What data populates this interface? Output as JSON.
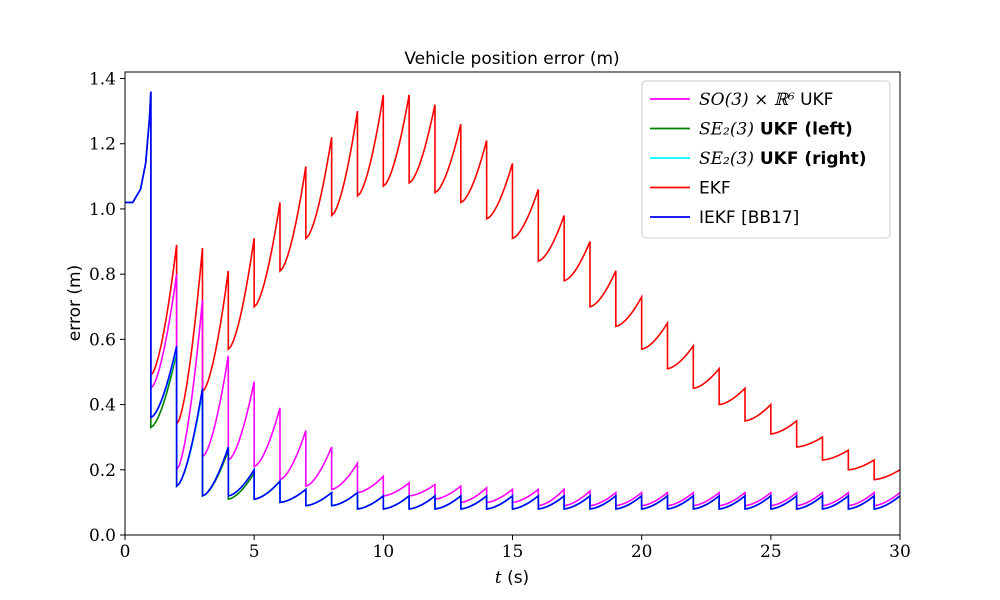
{
  "chart_data": {
    "type": "line",
    "title": "Vehicle position error (m)",
    "xlabel_var": "t",
    "xlabel_unit": "(s)",
    "ylabel": "error (m)",
    "xlim": [
      0,
      30
    ],
    "ylim": [
      0,
      1.42
    ],
    "xticks": [
      0,
      5,
      10,
      15,
      20,
      25,
      30
    ],
    "yticks": [
      0.0,
      0.2,
      0.4,
      0.6,
      0.8,
      1.0,
      1.2,
      1.4
    ],
    "grid": false,
    "legend_position": "top-right",
    "series": [
      {
        "name": "SO(3) × ℝ⁶ UKF",
        "color": "#ff00ff",
        "sawtooth": [
          [
            0.45,
            0.8
          ],
          [
            0.2,
            0.72
          ],
          [
            0.24,
            0.55
          ],
          [
            0.23,
            0.47
          ],
          [
            0.21,
            0.39
          ],
          [
            0.17,
            0.32
          ],
          [
            0.15,
            0.27
          ],
          [
            0.14,
            0.22
          ],
          [
            0.13,
            0.18
          ],
          [
            0.12,
            0.16
          ],
          [
            0.12,
            0.155
          ],
          [
            0.11,
            0.15
          ],
          [
            0.1,
            0.145
          ],
          [
            0.1,
            0.14
          ],
          [
            0.1,
            0.14
          ],
          [
            0.09,
            0.14
          ],
          [
            0.09,
            0.135
          ],
          [
            0.09,
            0.13
          ],
          [
            0.09,
            0.13
          ],
          [
            0.09,
            0.13
          ],
          [
            0.09,
            0.13
          ],
          [
            0.09,
            0.13
          ],
          [
            0.09,
            0.13
          ],
          [
            0.09,
            0.13
          ],
          [
            0.09,
            0.13
          ],
          [
            0.09,
            0.13
          ],
          [
            0.09,
            0.13
          ],
          [
            0.09,
            0.13
          ],
          [
            0.09,
            0.13
          ]
        ]
      },
      {
        "name": "SE₂(3) UKF (left)",
        "color": "#008000",
        "sawtooth": [
          [
            0.33,
            0.56
          ],
          [
            0.15,
            0.44
          ],
          [
            0.12,
            0.26
          ],
          [
            0.11,
            0.19
          ],
          [
            0.11,
            0.165
          ],
          [
            0.1,
            0.14
          ],
          [
            0.09,
            0.13
          ],
          [
            0.09,
            0.13
          ],
          [
            0.08,
            0.12
          ],
          [
            0.08,
            0.12
          ],
          [
            0.08,
            0.12
          ],
          [
            0.08,
            0.12
          ],
          [
            0.08,
            0.12
          ],
          [
            0.08,
            0.12
          ],
          [
            0.08,
            0.12
          ],
          [
            0.08,
            0.12
          ],
          [
            0.08,
            0.12
          ],
          [
            0.08,
            0.12
          ],
          [
            0.08,
            0.12
          ],
          [
            0.08,
            0.12
          ],
          [
            0.08,
            0.12
          ],
          [
            0.08,
            0.12
          ],
          [
            0.08,
            0.12
          ],
          [
            0.08,
            0.12
          ],
          [
            0.08,
            0.12
          ],
          [
            0.08,
            0.12
          ],
          [
            0.08,
            0.12
          ],
          [
            0.08,
            0.12
          ],
          [
            0.08,
            0.12
          ]
        ]
      },
      {
        "name": "SE₂(3) UKF (right)",
        "color": "#00ffff",
        "sawtooth": [
          [
            0.36,
            0.57
          ],
          [
            0.15,
            0.44
          ],
          [
            0.12,
            0.27
          ],
          [
            0.12,
            0.2
          ],
          [
            0.11,
            0.165
          ],
          [
            0.1,
            0.14
          ],
          [
            0.09,
            0.13
          ],
          [
            0.09,
            0.13
          ],
          [
            0.08,
            0.12
          ],
          [
            0.08,
            0.12
          ],
          [
            0.08,
            0.12
          ],
          [
            0.08,
            0.12
          ],
          [
            0.08,
            0.12
          ],
          [
            0.08,
            0.12
          ],
          [
            0.08,
            0.12
          ],
          [
            0.08,
            0.12
          ],
          [
            0.08,
            0.12
          ],
          [
            0.08,
            0.12
          ],
          [
            0.08,
            0.12
          ],
          [
            0.08,
            0.12
          ],
          [
            0.08,
            0.12
          ],
          [
            0.08,
            0.12
          ],
          [
            0.08,
            0.12
          ],
          [
            0.08,
            0.12
          ],
          [
            0.08,
            0.12
          ],
          [
            0.08,
            0.12
          ],
          [
            0.08,
            0.12
          ],
          [
            0.08,
            0.12
          ],
          [
            0.08,
            0.12
          ]
        ]
      },
      {
        "name": "EKF",
        "color": "#ff0000",
        "sawtooth": [
          [
            0.49,
            0.89
          ],
          [
            0.34,
            0.88
          ],
          [
            0.44,
            0.81
          ],
          [
            0.57,
            0.91
          ],
          [
            0.7,
            1.02
          ],
          [
            0.81,
            1.13
          ],
          [
            0.91,
            1.22
          ],
          [
            0.98,
            1.3
          ],
          [
            1.04,
            1.35
          ],
          [
            1.07,
            1.35
          ],
          [
            1.08,
            1.32
          ],
          [
            1.05,
            1.26
          ],
          [
            1.02,
            1.21
          ],
          [
            0.97,
            1.14
          ],
          [
            0.91,
            1.06
          ],
          [
            0.84,
            0.98
          ],
          [
            0.78,
            0.9
          ],
          [
            0.7,
            0.81
          ],
          [
            0.64,
            0.73
          ],
          [
            0.57,
            0.65
          ],
          [
            0.51,
            0.58
          ],
          [
            0.45,
            0.51
          ],
          [
            0.4,
            0.45
          ],
          [
            0.35,
            0.4
          ],
          [
            0.31,
            0.35
          ],
          [
            0.27,
            0.3
          ],
          [
            0.23,
            0.26
          ],
          [
            0.2,
            0.23
          ],
          [
            0.17,
            0.2
          ]
        ]
      },
      {
        "name": "IEKF [BB17]",
        "color": "#0000ff",
        "sawtooth": [
          [
            0.36,
            0.58
          ],
          [
            0.15,
            0.45
          ],
          [
            0.12,
            0.27
          ],
          [
            0.12,
            0.2
          ],
          [
            0.11,
            0.165
          ],
          [
            0.1,
            0.14
          ],
          [
            0.09,
            0.13
          ],
          [
            0.09,
            0.13
          ],
          [
            0.08,
            0.12
          ],
          [
            0.08,
            0.12
          ],
          [
            0.08,
            0.12
          ],
          [
            0.08,
            0.12
          ],
          [
            0.08,
            0.12
          ],
          [
            0.08,
            0.12
          ],
          [
            0.08,
            0.12
          ],
          [
            0.08,
            0.12
          ],
          [
            0.08,
            0.12
          ],
          [
            0.08,
            0.12
          ],
          [
            0.08,
            0.12
          ],
          [
            0.08,
            0.12
          ],
          [
            0.08,
            0.12
          ],
          [
            0.08,
            0.12
          ],
          [
            0.08,
            0.12
          ],
          [
            0.08,
            0.12
          ],
          [
            0.08,
            0.12
          ],
          [
            0.08,
            0.12
          ],
          [
            0.08,
            0.12
          ],
          [
            0.08,
            0.12
          ],
          [
            0.08,
            0.12
          ]
        ]
      }
    ],
    "initial_segment": {
      "t": [
        0,
        0.3,
        0.6,
        0.8,
        0.95,
        1.0
      ],
      "error": [
        1.02,
        1.02,
        1.06,
        1.14,
        1.28,
        1.36
      ]
    }
  },
  "legend": {
    "items": [
      {
        "math": "SO(3) × ℝ⁶",
        "text": " UKF",
        "bold": false,
        "color": "#ff00ff"
      },
      {
        "math": "SE₂(3)",
        "text": " UKF (left)",
        "bold": true,
        "color": "#008000"
      },
      {
        "math": "SE₂(3)",
        "text": " UKF (right)",
        "bold": true,
        "color": "#00ffff"
      },
      {
        "math": "",
        "text": "EKF",
        "bold": false,
        "color": "#ff0000"
      },
      {
        "math": "",
        "text": "IEKF [BB17]",
        "bold": false,
        "color": "#0000ff"
      }
    ]
  }
}
